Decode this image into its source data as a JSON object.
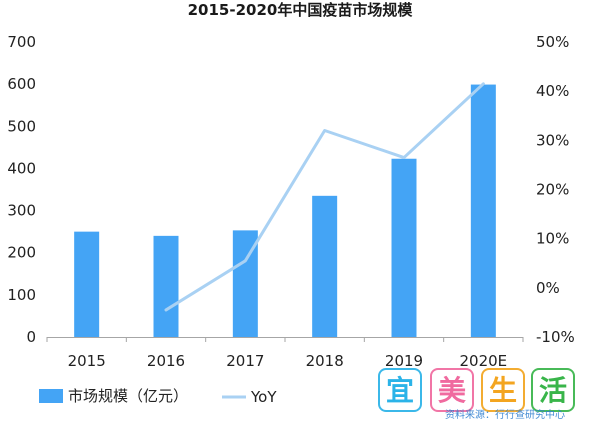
{
  "chart_data": {
    "type": "bar",
    "title": "2015-2020年中国疫苗市场规模",
    "categories": [
      "2015",
      "2016",
      "2017",
      "2018",
      "2019",
      "2020E"
    ],
    "series": [
      {
        "name": "市场规模（亿元）",
        "kind": "bar",
        "axis": "left",
        "values": [
          250,
          240,
          253,
          335,
          423,
          599
        ],
        "color": "#44a4f5"
      },
      {
        "name": "YoY",
        "kind": "line",
        "axis": "right",
        "values": [
          null,
          -4.5,
          5.5,
          32.0,
          26.5,
          41.5
        ],
        "color": "#a9d1f3"
      }
    ],
    "y_left": {
      "min": 0,
      "max": 700,
      "ticks": [
        "0",
        "100",
        "200",
        "300",
        "400",
        "500",
        "600",
        "700"
      ]
    },
    "y_right": {
      "min": -10,
      "max": 50,
      "unit": "%",
      "ticks": [
        "-10%",
        "0%",
        "10%",
        "20%",
        "30%",
        "40%",
        "50%"
      ]
    },
    "grid": false,
    "legend": "bottom"
  },
  "watermark": {
    "chars": [
      "宜",
      "美",
      "生",
      "活"
    ],
    "colors": [
      "#2bb3e8",
      "#f06a9f",
      "#f3a520",
      "#39b54a"
    ],
    "caption": "资料来源：行行查研究中心"
  }
}
